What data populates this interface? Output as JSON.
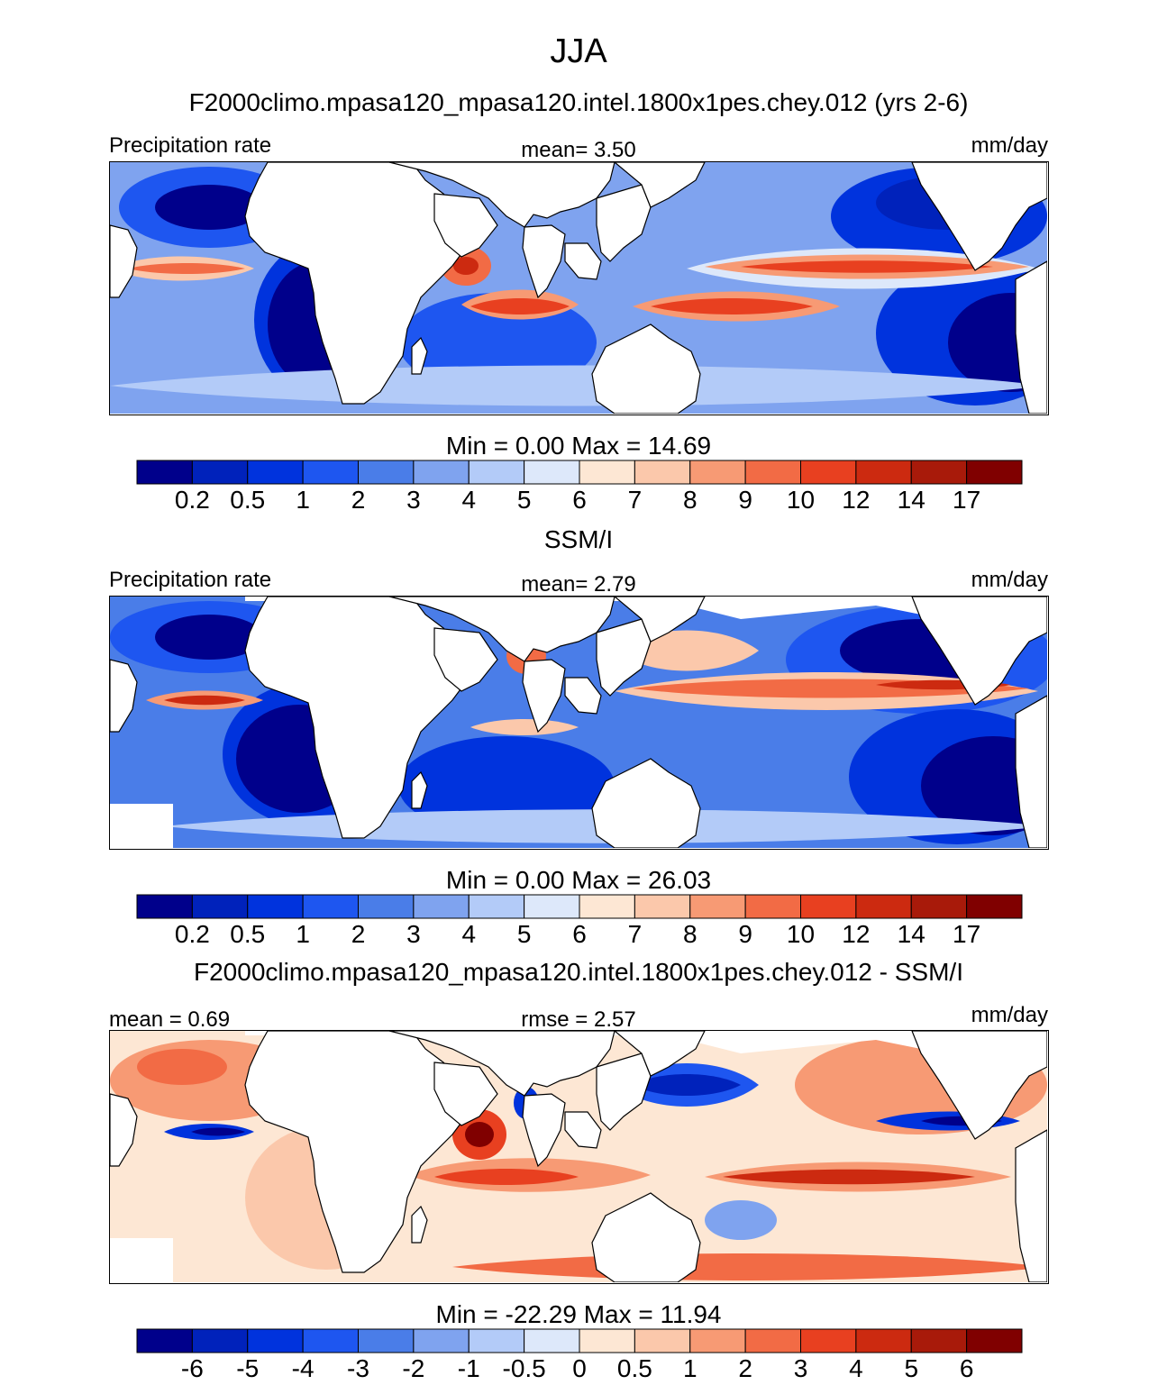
{
  "title": "JJA",
  "colors": [
    "#00008b",
    "#0022bb",
    "#0033dd",
    "#1e56f0",
    "#4a7de8",
    "#7fa3ef",
    "#b3cbf8",
    "#dde8fa",
    "#fde7d4",
    "#fbc8ab",
    "#f79a74",
    "#f26b45",
    "#e84020",
    "#cc2a10",
    "#a81a0a",
    "#800000"
  ],
  "chart_data": [
    {
      "type": "heatmap",
      "title": "F2000climo.mpasa120_mpasa120.intel.1800x1pes.chey.012 (yrs 2-6)",
      "left_label": "Precipitation rate",
      "center_label": "mean=   3.50",
      "right_label": "mm/day",
      "min_max": "Min =   0.00 Max =  14.69",
      "mean": 3.5,
      "min": 0.0,
      "max": 14.69,
      "units": "mm/day",
      "levels": [
        "0.2",
        "0.5",
        "1",
        "2",
        "3",
        "4",
        "5",
        "6",
        "7",
        "8",
        "9",
        "10",
        "12",
        "14",
        "17"
      ]
    },
    {
      "type": "heatmap",
      "title": "SSM/I",
      "left_label": "Precipitation rate",
      "center_label": "mean=   2.79",
      "right_label": "mm/day",
      "min_max": "Min =   0.00 Max =  26.03",
      "mean": 2.79,
      "min": 0.0,
      "max": 26.03,
      "units": "mm/day",
      "levels": [
        "0.2",
        "0.5",
        "1",
        "2",
        "3",
        "4",
        "5",
        "6",
        "7",
        "8",
        "9",
        "10",
        "12",
        "14",
        "17"
      ]
    },
    {
      "type": "heatmap",
      "title": "F2000climo.mpasa120_mpasa120.intel.1800x1pes.chey.012 - SSM/I",
      "left_label": "mean =   0.69",
      "center_label": "rmse =   2.57",
      "right_label": "mm/day",
      "min_max": "Min = -22.29 Max =  11.94",
      "mean": 0.69,
      "rmse": 2.57,
      "min": -22.29,
      "max": 11.94,
      "units": "mm/day",
      "levels": [
        "-6",
        "-5",
        "-4",
        "-3",
        "-2",
        "-1",
        "-0.5",
        "0",
        "0.5",
        "1",
        "2",
        "3",
        "4",
        "5",
        "6"
      ]
    }
  ]
}
